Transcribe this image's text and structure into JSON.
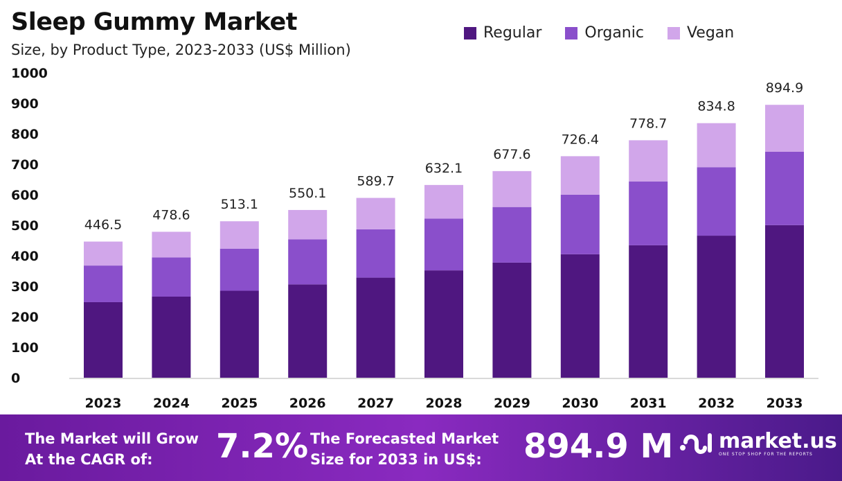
{
  "chart_data": {
    "type": "bar",
    "stacked": true,
    "title": "Sleep Gummy Market",
    "subtitle": "Size, by Product Type, 2023-2033 (US$ Million)",
    "categories": [
      "2023",
      "2024",
      "2025",
      "2026",
      "2027",
      "2028",
      "2029",
      "2030",
      "2031",
      "2032",
      "2033"
    ],
    "series": [
      {
        "name": "Regular",
        "color": "#4f1780",
        "values": [
          247.8,
          265.9,
          285.3,
          306.0,
          328.2,
          352.0,
          377.5,
          404.9,
          434.3,
          465.8,
          500.3
        ]
      },
      {
        "name": "Organic",
        "color": "#8a4fcb",
        "values": [
          120.1,
          128.7,
          138.0,
          148.0,
          158.6,
          170.0,
          182.3,
          195.4,
          209.5,
          224.6,
          240.7
        ]
      },
      {
        "name": "Vegan",
        "color": "#d1a6ea",
        "values": [
          78.6,
          84.0,
          89.8,
          96.1,
          102.9,
          110.1,
          117.8,
          126.1,
          134.9,
          144.4,
          153.9
        ]
      }
    ],
    "totals": [
      "446.5",
      "478.6",
      "513.1",
      "550.1",
      "589.7",
      "632.1",
      "677.6",
      "726.4",
      "778.7",
      "834.8",
      "894.9"
    ],
    "yticks": [
      "0",
      "100",
      "200",
      "300",
      "400",
      "500",
      "600",
      "700",
      "800",
      "900",
      "1000"
    ],
    "ylim": [
      0,
      1000
    ],
    "grid": false,
    "legend": "top-right"
  },
  "footer": {
    "cagr_label_1": "The Market will Grow",
    "cagr_label_2": "At the CAGR of:",
    "cagr_value": "7.2%",
    "forecast_label_1": "The Forecasted Market",
    "forecast_label_2": "Size for 2033 in US$:",
    "forecast_value": "894.9 M",
    "logo_text": "market.us",
    "logo_tagline": "ONE STOP SHOP FOR THE REPORTS"
  }
}
